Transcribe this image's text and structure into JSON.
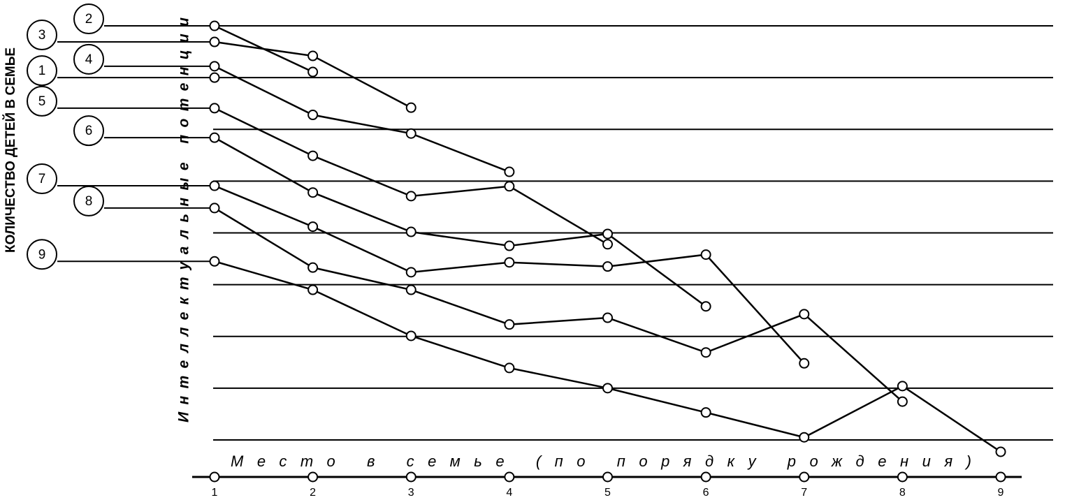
{
  "chart_data": {
    "type": "line",
    "title": "КОЛИЧЕСТВО ДЕТЕЙ В СЕМЬЕ",
    "y_label": "Интеллектуальные потенции",
    "x_label": "Место в семье (по порядку рождения)",
    "x": [
      1,
      2,
      3,
      4,
      5,
      6,
      7,
      8,
      9
    ],
    "xlim": [
      1,
      9
    ],
    "xticks": [
      1,
      2,
      3,
      4,
      5,
      6,
      7,
      8,
      9
    ],
    "ylim": [
      -0.5,
      8.5
    ],
    "yticks": [
      0,
      1,
      2,
      3,
      4,
      5,
      6,
      7,
      8
    ],
    "grid": true,
    "color": "#000000",
    "series": [
      {
        "name": "1",
        "values": [
          7.0,
          null,
          null,
          null,
          null,
          null,
          null,
          null,
          null
        ]
      },
      {
        "name": "2",
        "values": [
          8.0,
          7.11,
          null,
          null,
          null,
          null,
          null,
          null,
          null
        ]
      },
      {
        "name": "3",
        "values": [
          7.69,
          7.42,
          6.42,
          null,
          null,
          null,
          null,
          null,
          null
        ]
      },
      {
        "name": "4",
        "values": [
          7.22,
          6.28,
          5.92,
          5.18,
          null,
          null,
          null,
          null,
          null
        ]
      },
      {
        "name": "5",
        "values": [
          6.41,
          5.49,
          4.71,
          4.9,
          3.78,
          null,
          null,
          null,
          null
        ]
      },
      {
        "name": "6",
        "values": [
          5.84,
          4.78,
          4.02,
          3.75,
          3.98,
          2.58,
          null,
          null,
          null
        ]
      },
      {
        "name": "7",
        "values": [
          4.91,
          4.12,
          3.24,
          3.43,
          3.35,
          3.58,
          1.48,
          null,
          null
        ]
      },
      {
        "name": "8",
        "values": [
          4.48,
          3.33,
          2.9,
          2.23,
          2.36,
          1.69,
          2.43,
          0.74,
          null
        ]
      },
      {
        "name": "9",
        "values": [
          3.45,
          2.9,
          2.01,
          1.39,
          1.0,
          0.53,
          0.05,
          1.04,
          -0.23
        ]
      }
    ]
  }
}
